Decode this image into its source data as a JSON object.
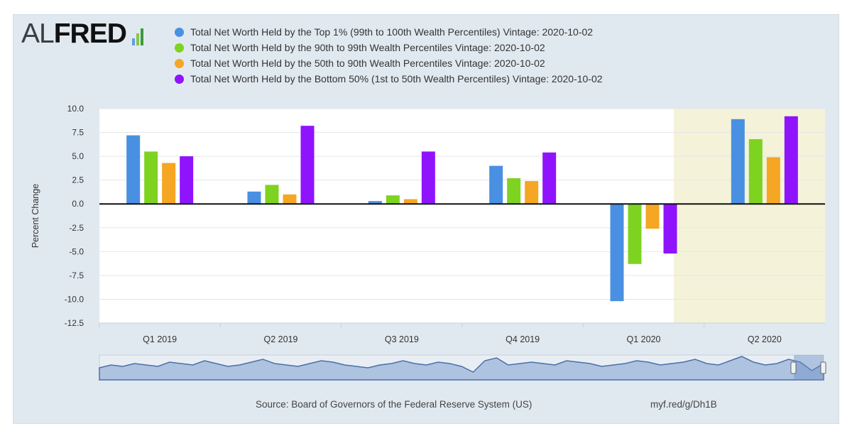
{
  "logo": {
    "prefix": "AL",
    "name": "FRED"
  },
  "colors": {
    "frame_bg": "#e1e9f0",
    "plot_bg": "#ffffff",
    "recession_band": "#f4f3da",
    "grid": "#e6e6e6",
    "navigator_fill": "#aec3df",
    "navigator_line": "#4a6fa8"
  },
  "chart_data": {
    "type": "bar",
    "categories": [
      "Q1 2019",
      "Q2 2019",
      "Q3 2019",
      "Q4 2019",
      "Q1 2020",
      "Q2 2020"
    ],
    "series": [
      {
        "name": "Total Net Worth Held by the Top 1% (99th to 100th Wealth Percentiles) Vintage: 2020-10-02",
        "color": "#4a90e2",
        "values": [
          7.2,
          1.3,
          0.3,
          4.0,
          -10.2,
          8.9
        ]
      },
      {
        "name": "Total Net Worth Held by the 90th to 99th Wealth Percentiles Vintage: 2020-10-02",
        "color": "#7ed321",
        "values": [
          5.5,
          2.0,
          0.9,
          2.7,
          -6.3,
          6.8
        ]
      },
      {
        "name": "Total Net Worth Held by the 50th to 90th Wealth Percentiles Vintage: 2020-10-02",
        "color": "#f5a623",
        "values": [
          4.3,
          1.0,
          0.5,
          2.4,
          -2.6,
          4.9
        ]
      },
      {
        "name": "Total Net Worth Held by the Bottom 50% (1st to 50th Wealth Percentiles) Vintage: 2020-10-02",
        "color": "#9013fe",
        "values": [
          5.0,
          8.2,
          5.5,
          5.4,
          -5.2,
          9.2
        ]
      }
    ],
    "ylabel": "Percent Change",
    "ylim": [
      -12.5,
      10.0
    ],
    "yticks": [
      "10.0",
      "7.5",
      "5.0",
      "2.5",
      "0.0",
      "-2.5",
      "-5.0",
      "-7.5",
      "-10.0",
      "-12.5"
    ],
    "ytick_values": [
      10,
      7.5,
      5,
      2.5,
      0,
      -2.5,
      -5,
      -7.5,
      -10,
      -12.5
    ],
    "grid": true,
    "legend_position": "top",
    "recession_shading_start_category": "Q1 2020"
  },
  "navigator": {
    "series": [
      0,
      2,
      1,
      3,
      2,
      1,
      4,
      3,
      2,
      5,
      3,
      1,
      2,
      4,
      6,
      3,
      2,
      1,
      3,
      5,
      4,
      2,
      1,
      0,
      2,
      3,
      5,
      3,
      2,
      4,
      3,
      1,
      -3,
      5,
      7,
      2,
      3,
      4,
      3,
      2,
      5,
      4,
      3,
      1,
      2,
      3,
      5,
      4,
      2,
      3,
      4,
      6,
      3,
      2,
      5,
      8,
      4,
      2,
      3,
      6,
      4,
      -2,
      3
    ]
  },
  "footer": {
    "source": "Source: Board of Governors of the Federal Reserve System (US)",
    "shortlink": "myf.red/g/Dh1B"
  }
}
